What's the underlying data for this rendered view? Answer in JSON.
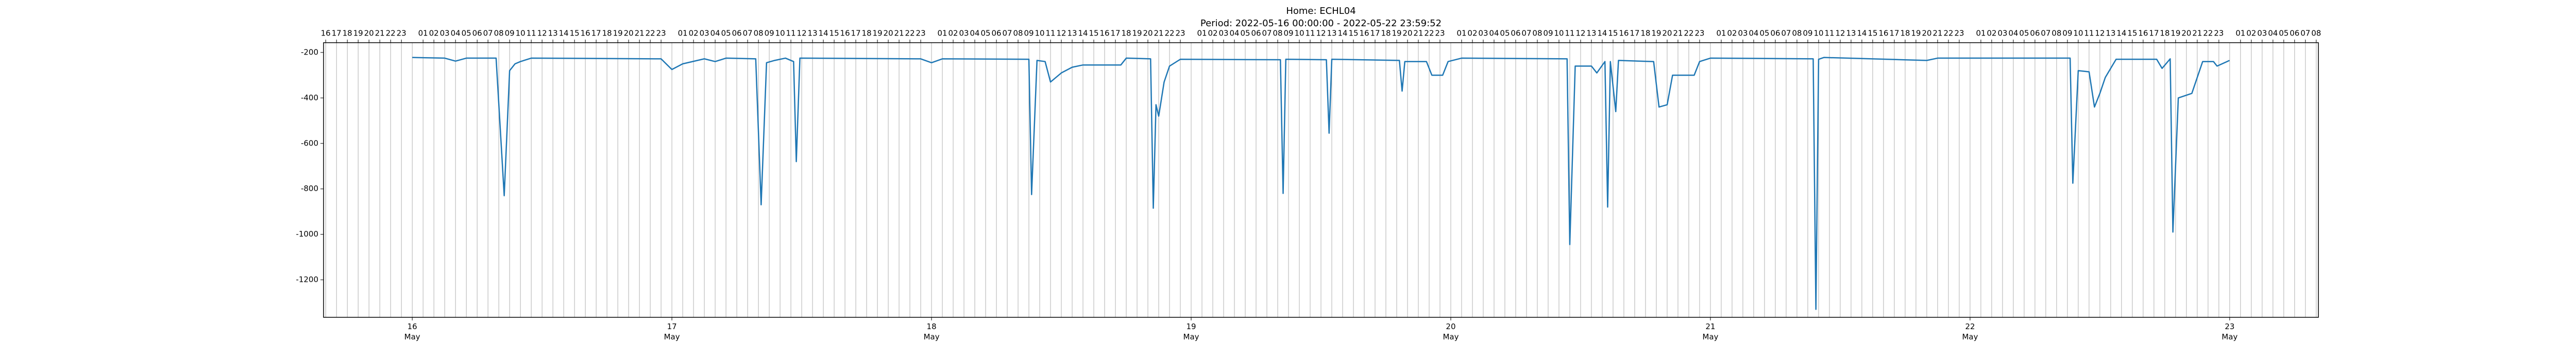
{
  "chart_data": {
    "type": "line",
    "title": "Home: ECHL04",
    "subtitle": "Period: 2022-05-16 00:00:00 - 2022-05-22 23:59:52",
    "color": "#1f77b4",
    "grid": true,
    "xlim": [
      "2022-05-15T15:48",
      "2022-05-23T08:12"
    ],
    "ylim": [
      -1365,
      -157
    ],
    "yticks": [
      -1200,
      -1000,
      -800,
      -600,
      -400,
      -200
    ],
    "xticks": [
      {
        "value": "2022-05-16T00:00",
        "label": "16 May"
      },
      {
        "value": "2022-05-17T00:00",
        "label": "17 May"
      },
      {
        "value": "2022-05-18T00:00",
        "label": "18 May"
      },
      {
        "value": "2022-05-19T00:00",
        "label": "19 May"
      },
      {
        "value": "2022-05-20T00:00",
        "label": "20 May"
      },
      {
        "value": "2022-05-21T00:00",
        "label": "21 May"
      },
      {
        "value": "2022-05-22T00:00",
        "label": "22 May"
      },
      {
        "value": "2022-05-23T00:00",
        "label": "23 May"
      }
    ],
    "top_xticks": [
      {
        "value": "2022-05-15T16:00",
        "label": "16"
      },
      {
        "value": "2022-05-15T17:00",
        "label": "17"
      },
      {
        "value": "2022-05-15T18:00",
        "label": "18"
      },
      {
        "value": "2022-05-15T19:00",
        "label": "19"
      },
      {
        "value": "2022-05-15T20:00",
        "label": "20"
      },
      {
        "value": "2022-05-15T21:00",
        "label": "21"
      },
      {
        "value": "2022-05-15T22:00",
        "label": "22"
      },
      {
        "value": "2022-05-15T23:00",
        "label": "23"
      },
      {
        "value": "2022-05-16T01:00",
        "label": "01"
      },
      {
        "value": "2022-05-16T02:00",
        "label": "02"
      },
      {
        "value": "2022-05-16T03:00",
        "label": "03"
      },
      {
        "value": "2022-05-16T04:00",
        "label": "04"
      },
      {
        "value": "2022-05-16T05:00",
        "label": "05"
      },
      {
        "value": "2022-05-16T06:00",
        "label": "06"
      },
      {
        "value": "2022-05-16T07:00",
        "label": "07"
      },
      {
        "value": "2022-05-16T08:00",
        "label": "08"
      },
      {
        "value": "2022-05-16T09:00",
        "label": "09"
      },
      {
        "value": "2022-05-16T10:00",
        "label": "10"
      },
      {
        "value": "2022-05-16T11:00",
        "label": "11"
      },
      {
        "value": "2022-05-16T12:00",
        "label": "12"
      },
      {
        "value": "2022-05-16T13:00",
        "label": "13"
      },
      {
        "value": "2022-05-16T14:00",
        "label": "14"
      },
      {
        "value": "2022-05-16T15:00",
        "label": "15"
      },
      {
        "value": "2022-05-16T16:00",
        "label": "16"
      },
      {
        "value": "2022-05-16T17:00",
        "label": "17"
      },
      {
        "value": "2022-05-16T18:00",
        "label": "18"
      },
      {
        "value": "2022-05-16T19:00",
        "label": "19"
      },
      {
        "value": "2022-05-16T20:00",
        "label": "20"
      },
      {
        "value": "2022-05-16T21:00",
        "label": "21"
      },
      {
        "value": "2022-05-16T22:00",
        "label": "22"
      },
      {
        "value": "2022-05-16T23:00",
        "label": "23"
      },
      {
        "value": "2022-05-17T01:00",
        "label": "01"
      },
      {
        "value": "2022-05-17T02:00",
        "label": "02"
      },
      {
        "value": "2022-05-17T03:00",
        "label": "03"
      },
      {
        "value": "2022-05-17T04:00",
        "label": "04"
      },
      {
        "value": "2022-05-17T05:00",
        "label": "05"
      },
      {
        "value": "2022-05-17T06:00",
        "label": "06"
      },
      {
        "value": "2022-05-17T07:00",
        "label": "07"
      },
      {
        "value": "2022-05-17T08:00",
        "label": "08"
      },
      {
        "value": "2022-05-17T09:00",
        "label": "09"
      },
      {
        "value": "2022-05-17T10:00",
        "label": "10"
      },
      {
        "value": "2022-05-17T11:00",
        "label": "11"
      },
      {
        "value": "2022-05-17T12:00",
        "label": "12"
      },
      {
        "value": "2022-05-17T13:00",
        "label": "13"
      },
      {
        "value": "2022-05-17T14:00",
        "label": "14"
      },
      {
        "value": "2022-05-17T15:00",
        "label": "15"
      },
      {
        "value": "2022-05-17T16:00",
        "label": "16"
      },
      {
        "value": "2022-05-17T17:00",
        "label": "17"
      },
      {
        "value": "2022-05-17T18:00",
        "label": "18"
      },
      {
        "value": "2022-05-17T19:00",
        "label": "19"
      },
      {
        "value": "2022-05-17T20:00",
        "label": "20"
      },
      {
        "value": "2022-05-17T21:00",
        "label": "21"
      },
      {
        "value": "2022-05-17T22:00",
        "label": "22"
      },
      {
        "value": "2022-05-17T23:00",
        "label": "23"
      },
      {
        "value": "2022-05-18T01:00",
        "label": "01"
      },
      {
        "value": "2022-05-18T02:00",
        "label": "02"
      },
      {
        "value": "2022-05-18T03:00",
        "label": "03"
      },
      {
        "value": "2022-05-18T04:00",
        "label": "04"
      },
      {
        "value": "2022-05-18T05:00",
        "label": "05"
      },
      {
        "value": "2022-05-18T06:00",
        "label": "06"
      },
      {
        "value": "2022-05-18T07:00",
        "label": "07"
      },
      {
        "value": "2022-05-18T08:00",
        "label": "08"
      },
      {
        "value": "2022-05-18T09:00",
        "label": "09"
      },
      {
        "value": "2022-05-18T10:00",
        "label": "10"
      },
      {
        "value": "2022-05-18T11:00",
        "label": "11"
      },
      {
        "value": "2022-05-18T12:00",
        "label": "12"
      },
      {
        "value": "2022-05-18T13:00",
        "label": "13"
      },
      {
        "value": "2022-05-18T14:00",
        "label": "14"
      },
      {
        "value": "2022-05-18T15:00",
        "label": "15"
      },
      {
        "value": "2022-05-18T16:00",
        "label": "16"
      },
      {
        "value": "2022-05-18T17:00",
        "label": "17"
      },
      {
        "value": "2022-05-18T18:00",
        "label": "18"
      },
      {
        "value": "2022-05-18T19:00",
        "label": "19"
      },
      {
        "value": "2022-05-18T20:00",
        "label": "20"
      },
      {
        "value": "2022-05-18T21:00",
        "label": "21"
      },
      {
        "value": "2022-05-18T22:00",
        "label": "22"
      },
      {
        "value": "2022-05-18T23:00",
        "label": "23"
      },
      {
        "value": "2022-05-19T01:00",
        "label": "01"
      },
      {
        "value": "2022-05-19T02:00",
        "label": "02"
      },
      {
        "value": "2022-05-19T03:00",
        "label": "03"
      },
      {
        "value": "2022-05-19T04:00",
        "label": "04"
      },
      {
        "value": "2022-05-19T05:00",
        "label": "05"
      },
      {
        "value": "2022-05-19T06:00",
        "label": "06"
      },
      {
        "value": "2022-05-19T07:00",
        "label": "07"
      },
      {
        "value": "2022-05-19T08:00",
        "label": "08"
      },
      {
        "value": "2022-05-19T09:00",
        "label": "09"
      },
      {
        "value": "2022-05-19T10:00",
        "label": "10"
      },
      {
        "value": "2022-05-19T11:00",
        "label": "11"
      },
      {
        "value": "2022-05-19T12:00",
        "label": "12"
      },
      {
        "value": "2022-05-19T13:00",
        "label": "13"
      },
      {
        "value": "2022-05-19T14:00",
        "label": "14"
      },
      {
        "value": "2022-05-19T15:00",
        "label": "15"
      },
      {
        "value": "2022-05-19T16:00",
        "label": "16"
      },
      {
        "value": "2022-05-19T17:00",
        "label": "17"
      },
      {
        "value": "2022-05-19T18:00",
        "label": "18"
      },
      {
        "value": "2022-05-19T19:00",
        "label": "19"
      },
      {
        "value": "2022-05-19T20:00",
        "label": "20"
      },
      {
        "value": "2022-05-19T21:00",
        "label": "21"
      },
      {
        "value": "2022-05-19T22:00",
        "label": "22"
      },
      {
        "value": "2022-05-19T23:00",
        "label": "23"
      },
      {
        "value": "2022-05-20T01:00",
        "label": "01"
      },
      {
        "value": "2022-05-20T02:00",
        "label": "02"
      },
      {
        "value": "2022-05-20T03:00",
        "label": "03"
      },
      {
        "value": "2022-05-20T04:00",
        "label": "04"
      },
      {
        "value": "2022-05-20T05:00",
        "label": "05"
      },
      {
        "value": "2022-05-20T06:00",
        "label": "06"
      },
      {
        "value": "2022-05-20T07:00",
        "label": "07"
      },
      {
        "value": "2022-05-20T08:00",
        "label": "08"
      },
      {
        "value": "2022-05-20T09:00",
        "label": "09"
      },
      {
        "value": "2022-05-20T10:00",
        "label": "10"
      },
      {
        "value": "2022-05-20T11:00",
        "label": "11"
      },
      {
        "value": "2022-05-20T12:00",
        "label": "12"
      },
      {
        "value": "2022-05-20T13:00",
        "label": "13"
      },
      {
        "value": "2022-05-20T14:00",
        "label": "14"
      },
      {
        "value": "2022-05-20T15:00",
        "label": "15"
      },
      {
        "value": "2022-05-20T16:00",
        "label": "16"
      },
      {
        "value": "2022-05-20T17:00",
        "label": "17"
      },
      {
        "value": "2022-05-20T18:00",
        "label": "18"
      },
      {
        "value": "2022-05-20T19:00",
        "label": "19"
      },
      {
        "value": "2022-05-20T20:00",
        "label": "20"
      },
      {
        "value": "2022-05-20T21:00",
        "label": "21"
      },
      {
        "value": "2022-05-20T22:00",
        "label": "22"
      },
      {
        "value": "2022-05-20T23:00",
        "label": "23"
      },
      {
        "value": "2022-05-21T01:00",
        "label": "01"
      },
      {
        "value": "2022-05-21T02:00",
        "label": "02"
      },
      {
        "value": "2022-05-21T03:00",
        "label": "03"
      },
      {
        "value": "2022-05-21T04:00",
        "label": "04"
      },
      {
        "value": "2022-05-21T05:00",
        "label": "05"
      },
      {
        "value": "2022-05-21T06:00",
        "label": "06"
      },
      {
        "value": "2022-05-21T07:00",
        "label": "07"
      },
      {
        "value": "2022-05-21T08:00",
        "label": "08"
      },
      {
        "value": "2022-05-21T09:00",
        "label": "09"
      },
      {
        "value": "2022-05-21T10:00",
        "label": "10"
      },
      {
        "value": "2022-05-21T11:00",
        "label": "11"
      },
      {
        "value": "2022-05-21T12:00",
        "label": "12"
      },
      {
        "value": "2022-05-21T13:00",
        "label": "13"
      },
      {
        "value": "2022-05-21T14:00",
        "label": "14"
      },
      {
        "value": "2022-05-21T15:00",
        "label": "15"
      },
      {
        "value": "2022-05-21T16:00",
        "label": "16"
      },
      {
        "value": "2022-05-21T17:00",
        "label": "17"
      },
      {
        "value": "2022-05-21T18:00",
        "label": "18"
      },
      {
        "value": "2022-05-21T19:00",
        "label": "19"
      },
      {
        "value": "2022-05-21T20:00",
        "label": "20"
      },
      {
        "value": "2022-05-21T21:00",
        "label": "21"
      },
      {
        "value": "2022-05-21T22:00",
        "label": "22"
      },
      {
        "value": "2022-05-21T23:00",
        "label": "23"
      },
      {
        "value": "2022-05-22T01:00",
        "label": "01"
      },
      {
        "value": "2022-05-22T02:00",
        "label": "02"
      },
      {
        "value": "2022-05-22T03:00",
        "label": "03"
      },
      {
        "value": "2022-05-22T04:00",
        "label": "04"
      },
      {
        "value": "2022-05-22T05:00",
        "label": "05"
      },
      {
        "value": "2022-05-22T06:00",
        "label": "06"
      },
      {
        "value": "2022-05-22T07:00",
        "label": "07"
      },
      {
        "value": "2022-05-22T08:00",
        "label": "08"
      },
      {
        "value": "2022-05-22T09:00",
        "label": "09"
      },
      {
        "value": "2022-05-22T10:00",
        "label": "10"
      },
      {
        "value": "2022-05-22T11:00",
        "label": "11"
      },
      {
        "value": "2022-05-22T12:00",
        "label": "12"
      },
      {
        "value": "2022-05-22T13:00",
        "label": "13"
      },
      {
        "value": "2022-05-22T14:00",
        "label": "14"
      },
      {
        "value": "2022-05-22T15:00",
        "label": "15"
      },
      {
        "value": "2022-05-22T16:00",
        "label": "16"
      },
      {
        "value": "2022-05-22T17:00",
        "label": "17"
      },
      {
        "value": "2022-05-22T18:00",
        "label": "18"
      },
      {
        "value": "2022-05-22T19:00",
        "label": "19"
      },
      {
        "value": "2022-05-22T20:00",
        "label": "20"
      },
      {
        "value": "2022-05-22T21:00",
        "label": "21"
      },
      {
        "value": "2022-05-22T22:00",
        "label": "22"
      },
      {
        "value": "2022-05-22T23:00",
        "label": "23"
      },
      {
        "value": "2022-05-23T01:00",
        "label": "01"
      },
      {
        "value": "2022-05-23T02:00",
        "label": "02"
      },
      {
        "value": "2022-05-23T03:00",
        "label": "03"
      },
      {
        "value": "2022-05-23T04:00",
        "label": "04"
      },
      {
        "value": "2022-05-23T05:00",
        "label": "05"
      },
      {
        "value": "2022-05-23T06:00",
        "label": "06"
      },
      {
        "value": "2022-05-23T07:00",
        "label": "07"
      },
      {
        "value": "2022-05-23T08:00",
        "label": "08"
      }
    ],
    "x": [
      "2022-05-16T00:00",
      "2022-05-16T03:00",
      "2022-05-16T04:00",
      "2022-05-16T05:00",
      "2022-05-16T07:45",
      "2022-05-16T08:30",
      "2022-05-16T09:00",
      "2022-05-16T09:30",
      "2022-05-16T10:00",
      "2022-05-16T11:00",
      "2022-05-16T23:00",
      "2022-05-17T00:00",
      "2022-05-17T01:00",
      "2022-05-17T03:00",
      "2022-05-17T04:00",
      "2022-05-17T05:00",
      "2022-05-17T07:45",
      "2022-05-17T08:15",
      "2022-05-17T08:45",
      "2022-05-17T09:30",
      "2022-05-17T10:00",
      "2022-05-17T10:30",
      "2022-05-17T11:15",
      "2022-05-17T11:30",
      "2022-05-17T11:50",
      "2022-05-17T23:00",
      "2022-05-18T00:00",
      "2022-05-18T01:00",
      "2022-05-18T09:00",
      "2022-05-18T09:15",
      "2022-05-18T09:45",
      "2022-05-18T10:30",
      "2022-05-18T11:00",
      "2022-05-18T12:00",
      "2022-05-18T13:00",
      "2022-05-18T14:00",
      "2022-05-18T17:30",
      "2022-05-18T18:00",
      "2022-05-18T20:15",
      "2022-05-18T20:30",
      "2022-05-18T20:45",
      "2022-05-18T21:00",
      "2022-05-18T21:30",
      "2022-05-18T22:00",
      "2022-05-18T23:00",
      "2022-05-19T08:15",
      "2022-05-19T08:30",
      "2022-05-19T08:45",
      "2022-05-19T12:30",
      "2022-05-19T12:45",
      "2022-05-19T13:00",
      "2022-05-19T19:15",
      "2022-05-19T19:30",
      "2022-05-19T19:45",
      "2022-05-19T21:45",
      "2022-05-19T22:15",
      "2022-05-19T23:15",
      "2022-05-19T23:45",
      "2022-05-20T01:00",
      "2022-05-20T10:45",
      "2022-05-20T11:00",
      "2022-05-20T11:30",
      "2022-05-20T13:00",
      "2022-05-20T13:30",
      "2022-05-20T14:15",
      "2022-05-20T14:30",
      "2022-05-20T14:45",
      "2022-05-20T15:15",
      "2022-05-20T15:30",
      "2022-05-20T18:45",
      "2022-05-20T19:15",
      "2022-05-20T20:00",
      "2022-05-20T20:30",
      "2022-05-20T22:30",
      "2022-05-20T23:00",
      "2022-05-21T00:00",
      "2022-05-21T09:30",
      "2022-05-21T09:45",
      "2022-05-21T10:00",
      "2022-05-21T10:30",
      "2022-05-21T20:00",
      "2022-05-21T21:00",
      "2022-05-22T09:15",
      "2022-05-22T09:30",
      "2022-05-22T10:00",
      "2022-05-22T11:00",
      "2022-05-22T11:30",
      "2022-05-22T12:00",
      "2022-05-22T12:30",
      "2022-05-22T13:30",
      "2022-05-22T17:15",
      "2022-05-22T17:45",
      "2022-05-22T18:30",
      "2022-05-22T18:45",
      "2022-05-22T19:15",
      "2022-05-22T20:30",
      "2022-05-22T21:30",
      "2022-05-22T22:30",
      "2022-05-22T22:50",
      "2022-05-22T23:59"
    ],
    "values": [
      -222,
      -225,
      -238,
      -225,
      -225,
      -830,
      -280,
      -250,
      -240,
      -225,
      -228,
      -275,
      -250,
      -228,
      -240,
      -225,
      -228,
      -870,
      -245,
      -235,
      -230,
      -225,
      -240,
      -680,
      -225,
      -228,
      -245,
      -228,
      -230,
      -825,
      -235,
      -240,
      -330,
      -290,
      -265,
      -255,
      -255,
      -225,
      -228,
      -885,
      -430,
      -480,
      -330,
      -260,
      -230,
      -232,
      -820,
      -230,
      -232,
      -555,
      -230,
      -235,
      -370,
      -240,
      -240,
      -300,
      -300,
      -240,
      -225,
      -228,
      -1045,
      -260,
      -260,
      -290,
      -240,
      -880,
      -240,
      -460,
      -235,
      -240,
      -440,
      -430,
      -300,
      -300,
      -240,
      -225,
      -228,
      -1330,
      -230,
      -222,
      -235,
      -225,
      -225,
      -775,
      -280,
      -285,
      -440,
      -380,
      -310,
      -230,
      -230,
      -270,
      -228,
      -990,
      -400,
      -380,
      -240,
      -240,
      -260,
      -235
    ]
  }
}
